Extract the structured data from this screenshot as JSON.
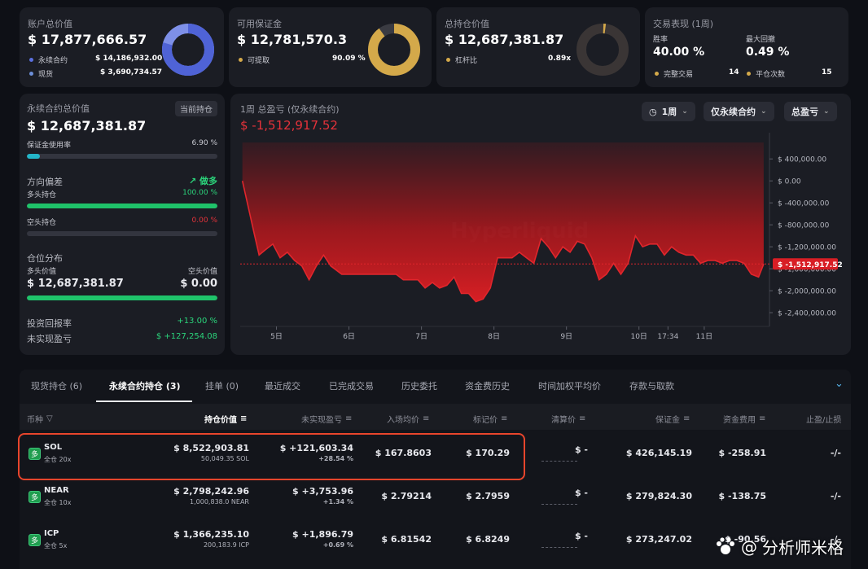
{
  "summary": {
    "account": {
      "title": "账户总价值",
      "value": "$ 17,877,666.57",
      "items": [
        {
          "label": "永续合约",
          "value": "$ 14,186,932.00"
        },
        {
          "label": "现货",
          "value": "$ 3,690,734.57"
        }
      ]
    },
    "margin": {
      "title": "可用保证金",
      "value": "$ 12,781,570.3",
      "item_label": "可提取",
      "item_value": "90.09 %"
    },
    "positions": {
      "title": "总持仓价值",
      "value": "$ 12,687,381.87",
      "item_label": "杠杆比",
      "item_value": "0.89x"
    },
    "performance": {
      "title": "交易表现 (1周)",
      "winrate_label": "胜率",
      "winrate": "40.00 %",
      "drawdown_label": "最大回撤",
      "drawdown": "0.49 %",
      "done_label": "完整交易",
      "done": "14",
      "flat_label": "平仓次数",
      "flat": "15"
    }
  },
  "left_panel": {
    "perp_title": "永续合约总价值",
    "current_badge": "当前持仓",
    "perp_value": "$ 12,687,381.87",
    "margin_usage_label": "保证金使用率",
    "margin_usage": "6.90 %",
    "margin_usage_fraction": 0.069,
    "direction_label": "方向偏差",
    "direction_value": "做多",
    "long_label": "多头持仓",
    "long_pct": "100.00 %",
    "long_fraction": 1.0,
    "short_label": "空头持仓",
    "short_pct": "0.00 %",
    "short_fraction": 0.0,
    "dist_label": "仓位分布",
    "long_value_label": "多头价值",
    "long_value": "$ 12,687,381.87",
    "short_value_label": "空头价值",
    "short_value": "$ 0.00",
    "roi_label": "投资回报率",
    "roi": "+13.00 %",
    "unrealized_label": "未实现盈亏",
    "unrealized": "$ +127,254.08"
  },
  "pnl_chart": {
    "title": "1周 总盈亏 (仅永续合约)",
    "value": "$ -1,512,917.52",
    "filters": [
      "1周",
      "仅永续合约",
      "总盈亏"
    ],
    "watermark": "Hyperliquid"
  },
  "chart_data": {
    "type": "area",
    "title": "1周 总盈亏 (仅永续合约)",
    "y_ticks": [
      400000,
      0,
      -400000,
      -800000,
      -1200000,
      -1600000,
      -2000000,
      -2400000
    ],
    "y_tick_labels": [
      "$ 400,000.00",
      "$ 0.00",
      "$ -400,000.00",
      "$ -800,000.00",
      "$ -1,200,000.00",
      "$ -1,600,000.00",
      "$ -2,000,000.00",
      "$ -2,400,000.00"
    ],
    "ylim": [
      -2650000,
      700000
    ],
    "x_tick_labels": [
      "5日",
      "6日",
      "7日",
      "8日",
      "9日",
      "10日",
      "17:34",
      "11日"
    ],
    "x_tick_positions": [
      5.5,
      6.5,
      7.5,
      8.5,
      9.5,
      10.5,
      10.9,
      11.4
    ],
    "xlim": [
      5.0,
      12.3
    ],
    "current_value": -1512917.52,
    "current_label": "$ -1,512,917.52",
    "x": [
      5.03,
      5.2,
      5.26,
      5.35,
      5.45,
      5.55,
      5.65,
      5.75,
      5.85,
      5.95,
      6.05,
      6.15,
      6.25,
      6.4,
      6.55,
      6.7,
      6.85,
      6.95,
      7.05,
      7.15,
      7.25,
      7.35,
      7.45,
      7.55,
      7.65,
      7.75,
      7.85,
      7.95,
      8.05,
      8.15,
      8.25,
      8.35,
      8.45,
      8.55,
      8.65,
      8.75,
      8.85,
      8.95,
      9.05,
      9.15,
      9.25,
      9.35,
      9.45,
      9.55,
      9.65,
      9.75,
      9.85,
      9.95,
      10.05,
      10.15,
      10.25,
      10.35,
      10.45,
      10.55,
      10.65,
      10.75,
      10.85,
      10.95,
      11.05,
      11.15,
      11.25,
      11.35,
      11.45,
      11.55,
      11.65,
      11.75,
      11.85,
      11.95,
      12.05,
      12.15,
      12.22
    ],
    "y": [
      0,
      -1000000,
      -1350000,
      -1250000,
      -1150000,
      -1400000,
      -1300000,
      -1450000,
      -1550000,
      -1800000,
      -1550000,
      -1350000,
      -1550000,
      -1700000,
      -1700000,
      -1700000,
      -1700000,
      -1700000,
      -1700000,
      -1700000,
      -1800000,
      -1800000,
      -1800000,
      -1950000,
      -1850000,
      -1950000,
      -1900000,
      -1750000,
      -2050000,
      -2050000,
      -2200000,
      -2150000,
      -1950000,
      -1400000,
      -1400000,
      -1400000,
      -1300000,
      -1400000,
      -1500000,
      -1050000,
      -1200000,
      -1400000,
      -1200000,
      -1300000,
      -1100000,
      -1150000,
      -1400000,
      -1800000,
      -1700000,
      -1500000,
      -1700000,
      -1500000,
      -1000000,
      -1200000,
      -1150000,
      -1150000,
      -1350000,
      -1200000,
      -1300000,
      -1350000,
      -1350000,
      -1500000,
      -1450000,
      -1450000,
      -1500000,
      -1450000,
      -1450000,
      -1500000,
      -1700000,
      -1750000,
      -1512917.52
    ]
  },
  "tabs": [
    "现货持仓 (6)",
    "永续合约持仓 (3)",
    "挂单 (0)",
    "最近成交",
    "已完成交易",
    "历史委托",
    "资金费历史",
    "时间加权平均价",
    "存款与取款"
  ],
  "table": {
    "headers": [
      "币种",
      "持仓价值",
      "未实现盈亏",
      "入场均价",
      "标记价",
      "清算价",
      "保证金",
      "资金费用",
      "止盈/止损"
    ],
    "rows": [
      {
        "icon": "多",
        "coin": "SOL",
        "mode": "全仓 20x",
        "value": "$ 8,522,903.81",
        "size": "50,049.35 SOL",
        "pnl": "$ +121,603.34",
        "pnl_pct": "+28.54 %",
        "entry": "$ 167.8603",
        "mark": "$ 170.29",
        "liq": "$ -",
        "margin": "$ 426,145.19",
        "funding": "$ -258.91",
        "tpsl": "-/-"
      },
      {
        "icon": "多",
        "coin": "NEAR",
        "mode": "全仓 10x",
        "value": "$ 2,798,242.96",
        "size": "1,000,838.0 NEAR",
        "pnl": "$ +3,753.96",
        "pnl_pct": "+1.34 %",
        "entry": "$ 2.79214",
        "mark": "$ 2.7959",
        "liq": "$ -",
        "margin": "$ 279,824.30",
        "funding": "$ -138.75",
        "tpsl": "-/-"
      },
      {
        "icon": "多",
        "coin": "ICP",
        "mode": "全仓 5x",
        "value": "$ 1,366,235.10",
        "size": "200,183.9 ICP",
        "pnl": "$ +1,896.79",
        "pnl_pct": "+0.69 %",
        "entry": "$ 6.81542",
        "mark": "$ 6.8249",
        "liq": "$ -",
        "margin": "$ 273,247.02",
        "funding": "$ -90.56",
        "tpsl": "-/-"
      }
    ]
  },
  "watermark": {
    "text": "分析师米格",
    "at": "@"
  },
  "colors": {
    "accent_blue": "#5b70e0",
    "accent_gold": "#d4a94a",
    "green": "#2bd47b",
    "red": "#e5323a",
    "highlight": "#e8452c"
  }
}
